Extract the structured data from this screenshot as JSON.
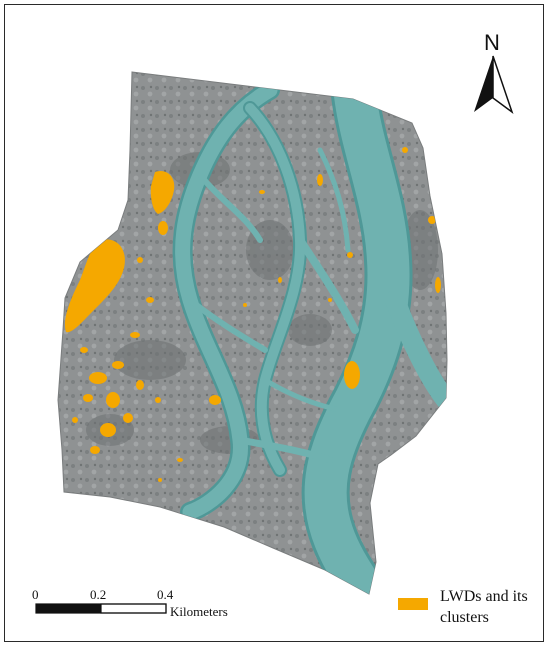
{
  "map": {
    "north_label": "N",
    "scale_bar": {
      "ticks": [
        "0",
        "0.2",
        "0.4"
      ],
      "units": "Kilometers"
    },
    "legend": {
      "label": "LWDs and its clusters",
      "color": "#f5a800"
    },
    "colors": {
      "terrain": "#8f9293",
      "terrain_dark": "#6d7172",
      "water": "#6fb2b0",
      "water_edge": "#4f9897",
      "lwd": "#f5a800"
    }
  }
}
